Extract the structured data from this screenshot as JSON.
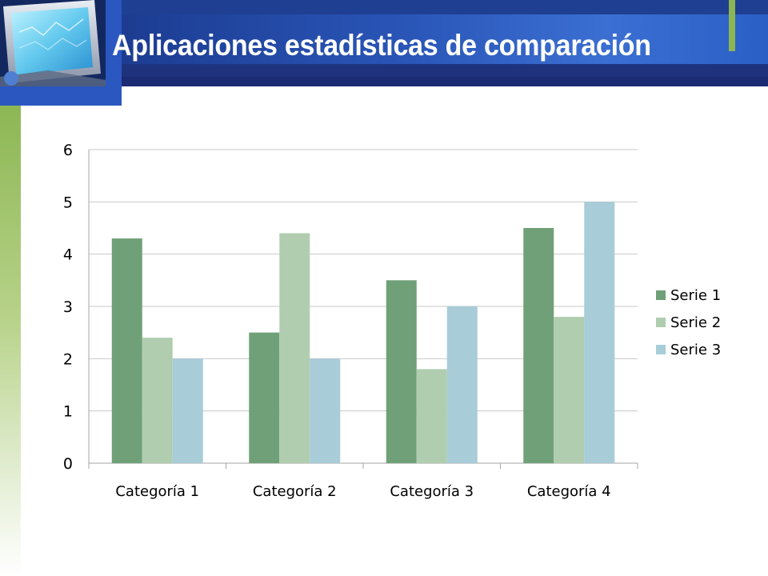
{
  "slide": {
    "title": "Aplicaciones estadísticas de comparación"
  },
  "colors": {
    "header_dark": "#1d2f77",
    "header_light": "#3b6fd2",
    "accent_green": "#8cb653"
  },
  "chart_data": {
    "type": "bar",
    "categories": [
      "Categoría 1",
      "Categoría 2",
      "Categoría 3",
      "Categoría 4"
    ],
    "series": [
      {
        "name": "Serie 1",
        "values": [
          4.3,
          2.5,
          3.5,
          4.5
        ],
        "color": "#70a077"
      },
      {
        "name": "Serie 2",
        "values": [
          2.4,
          4.4,
          1.8,
          2.8
        ],
        "color": "#b0cdb0"
      },
      {
        "name": "Serie 3",
        "values": [
          2.0,
          2.0,
          3.0,
          5.0
        ],
        "color": "#a8ccd8"
      }
    ],
    "ylim": [
      0,
      6
    ],
    "yticks": [
      0,
      1,
      2,
      3,
      4,
      5,
      6
    ],
    "grid": true,
    "legend": "right",
    "title": "",
    "xlabel": "",
    "ylabel": ""
  }
}
